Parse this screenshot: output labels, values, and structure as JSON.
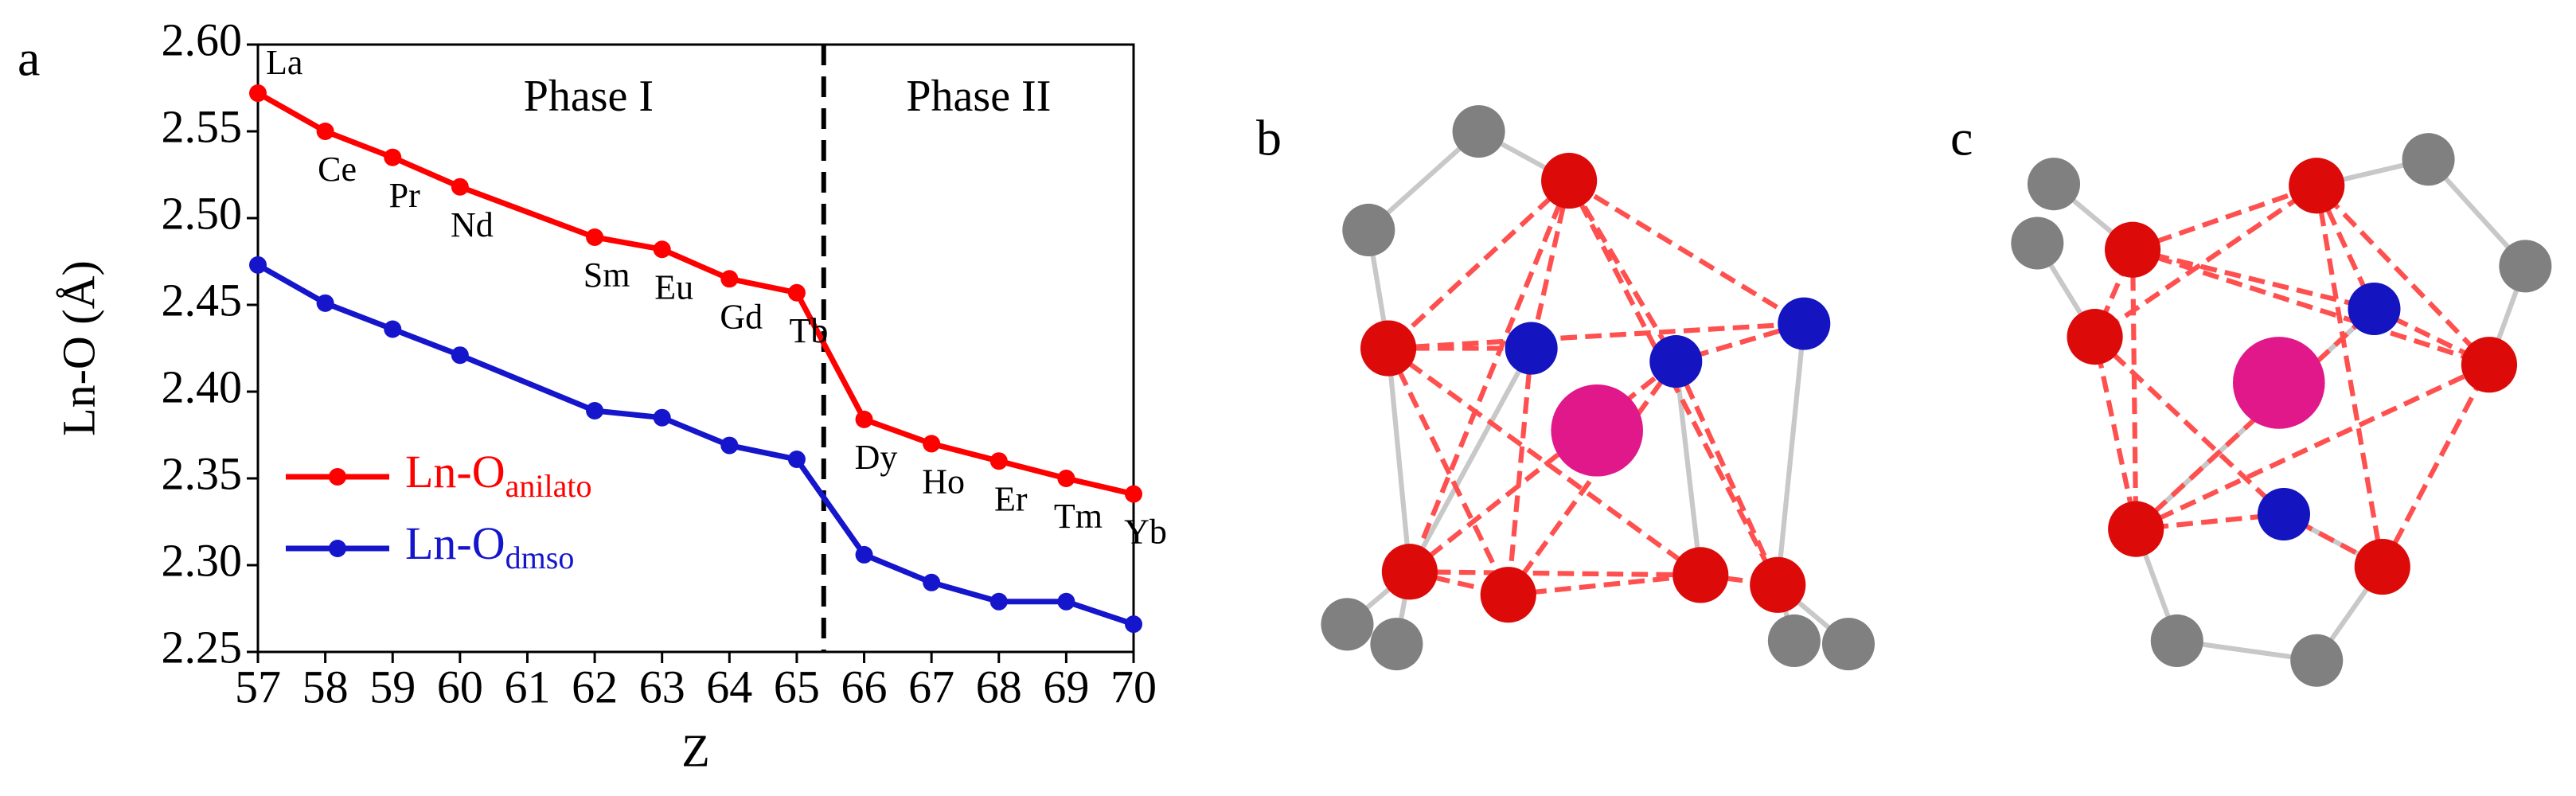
{
  "chart_data": {
    "type": "line",
    "panel_label": "a",
    "xlabel": "Z",
    "ylabel": "Ln-O (Å)",
    "x": [
      57,
      58,
      59,
      60,
      62,
      63,
      64,
      65,
      66,
      67,
      68,
      69,
      70
    ],
    "point_labels": [
      "La",
      "Ce",
      "Pr",
      "Nd",
      "Sm",
      "Eu",
      "Gd",
      "Tb",
      "Dy",
      "Ho",
      "Er",
      "Tm",
      "Yb"
    ],
    "series": [
      {
        "name": "Ln-O",
        "name_subscript": "anilato",
        "color": "#ff0000",
        "values": [
          2.572,
          2.55,
          2.535,
          2.518,
          2.489,
          2.482,
          2.465,
          2.457,
          2.384,
          2.37,
          2.36,
          2.35,
          2.341
        ]
      },
      {
        "name": "Ln-O",
        "name_subscript": "dmso",
        "color": "#1515cc",
        "values": [
          2.473,
          2.451,
          2.436,
          2.421,
          2.389,
          2.385,
          2.369,
          2.361,
          2.306,
          2.29,
          2.279,
          2.279,
          2.266
        ]
      }
    ],
    "xlim": [
      57,
      70
    ],
    "ylim": [
      2.25,
      2.6
    ],
    "xticks": [
      57,
      58,
      59,
      60,
      61,
      62,
      63,
      64,
      65,
      66,
      67,
      68,
      69,
      70
    ],
    "yticks": [
      2.25,
      {
        "value": 2.3,
        "label": "2.30"
      },
      2.35,
      {
        "value": 2.4,
        "label": "2.40"
      },
      2.45,
      {
        "value": 2.5,
        "label": "2.50"
      },
      2.55,
      {
        "value": 2.6,
        "label": "2.60"
      }
    ],
    "phase_boundary": 65.4,
    "phase_labels": [
      "Phase I",
      "Phase II"
    ],
    "legend": "lower left"
  },
  "panels": [
    {
      "label": "b"
    },
    {
      "label": "c"
    }
  ]
}
